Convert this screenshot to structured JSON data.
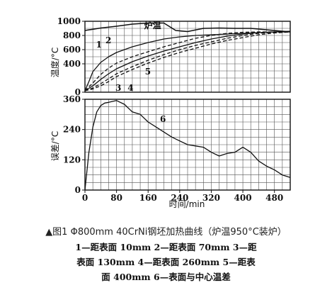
{
  "caption": "▲图1 Φ800mm 40CrNi钢坯加热曲线（炉温950°C装炉）",
  "legend_lines": [
    "1—距表面 10mm 2—距表面 70mm 3—距",
    "表面 130mm 4—距表面 260mm 5—距表",
    "面 400mm 6—表面与中心温差"
  ],
  "chart_data": [
    {
      "type": "line",
      "title": "",
      "xlabel": "",
      "ylabel": "温度/°C",
      "xlim": [
        0,
        520
      ],
      "ylim": [
        0,
        1000
      ],
      "yticks": [
        0,
        400,
        600,
        800,
        1000
      ],
      "grid": true,
      "series": [
        {
          "name": "炉温",
          "style": "solid",
          "x": [
            0,
            40,
            80,
            120,
            160,
            200,
            230,
            260,
            300,
            340,
            380,
            420,
            460,
            520
          ],
          "y": [
            870,
            905,
            930,
            960,
            975,
            975,
            870,
            855,
            900,
            905,
            900,
            900,
            880,
            850
          ]
        },
        {
          "name": "1",
          "style": "solid",
          "x": [
            0,
            10,
            20,
            40,
            60,
            80,
            120,
            160,
            200,
            240,
            280,
            320,
            360,
            400,
            440,
            480,
            520
          ],
          "y": [
            20,
            150,
            290,
            420,
            500,
            560,
            640,
            700,
            750,
            780,
            800,
            810,
            820,
            830,
            840,
            850,
            860
          ]
        },
        {
          "name": "2",
          "style": "dashed",
          "x": [
            0,
            20,
            40,
            60,
            80,
            120,
            160,
            200,
            240,
            280,
            320,
            360,
            400,
            440,
            480,
            520
          ],
          "y": [
            20,
            130,
            250,
            340,
            410,
            500,
            570,
            640,
            700,
            760,
            800,
            830,
            845,
            850,
            850,
            850
          ]
        },
        {
          "name": "3",
          "style": "solid",
          "x": [
            0,
            20,
            40,
            60,
            80,
            120,
            160,
            200,
            240,
            280,
            320,
            360,
            400,
            440,
            480,
            520
          ],
          "y": [
            20,
            90,
            180,
            260,
            330,
            430,
            510,
            580,
            640,
            700,
            750,
            790,
            820,
            840,
            850,
            850
          ]
        },
        {
          "name": "4",
          "style": "dashed",
          "x": [
            0,
            20,
            40,
            60,
            80,
            120,
            160,
            200,
            240,
            280,
            320,
            360,
            400,
            440,
            480,
            520
          ],
          "y": [
            20,
            60,
            120,
            190,
            260,
            360,
            450,
            530,
            600,
            660,
            710,
            760,
            800,
            830,
            845,
            850
          ]
        },
        {
          "name": "5",
          "style": "dashed",
          "x": [
            0,
            20,
            40,
            60,
            80,
            120,
            160,
            200,
            240,
            280,
            320,
            360,
            400,
            440,
            480,
            520
          ],
          "y": [
            20,
            45,
            90,
            150,
            220,
            320,
            410,
            490,
            560,
            620,
            680,
            730,
            770,
            810,
            835,
            850
          ]
        }
      ],
      "labels": [
        {
          "text": "炉温",
          "x": 150,
          "y": 900
        },
        {
          "text": "1",
          "x": 28,
          "y": 630
        },
        {
          "text": "2",
          "x": 52,
          "y": 690
        },
        {
          "text": "3",
          "x": 77,
          "y": 20
        },
        {
          "text": "4",
          "x": 108,
          "y": 20
        },
        {
          "text": "5",
          "x": 152,
          "y": 250
        }
      ]
    },
    {
      "type": "line",
      "title": "",
      "xlabel": "时间/min",
      "ylabel": "误差/°C",
      "xlim": [
        0,
        520
      ],
      "ylim": [
        0,
        360
      ],
      "xticks": [
        0,
        80,
        160,
        240,
        320,
        400,
        480
      ],
      "yticks": [
        0,
        120,
        240,
        360
      ],
      "grid": true,
      "series": [
        {
          "name": "6",
          "style": "solid",
          "x": [
            0,
            10,
            20,
            30,
            40,
            50,
            60,
            80,
            100,
            120,
            140,
            160,
            180,
            200,
            220,
            240,
            260,
            280,
            300,
            320,
            340,
            360,
            380,
            400,
            420,
            440,
            460,
            480,
            500,
            520
          ],
          "y": [
            0,
            150,
            250,
            310,
            335,
            345,
            348,
            355,
            340,
            310,
            300,
            270,
            250,
            230,
            210,
            195,
            180,
            175,
            170,
            150,
            135,
            145,
            150,
            170,
            150,
            115,
            95,
            80,
            60,
            50
          ]
        }
      ],
      "labels": [
        {
          "text": "6",
          "x": 190,
          "y": 270
        }
      ]
    }
  ]
}
